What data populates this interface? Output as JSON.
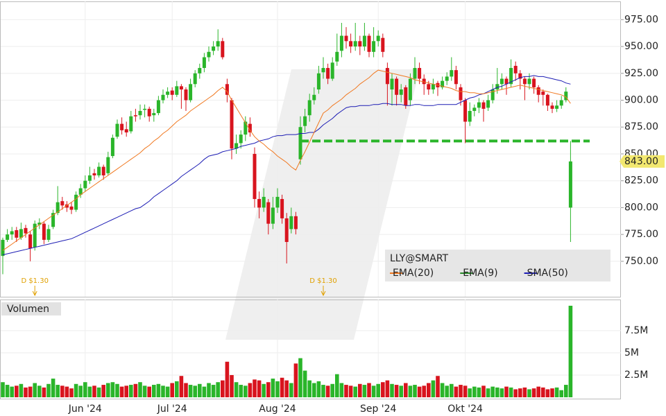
{
  "chart_data": {
    "type": "candlestick",
    "symbol": "LLY@SMART",
    "volume_title": "Volumen",
    "legend": [
      "EMA(20)",
      "EMA(9)",
      "SMA(50)"
    ],
    "legend_colors": [
      "#f07820",
      "#2a8a2a",
      "#1c1cb4"
    ],
    "colors": {
      "up": "#2ab52a",
      "down": "#d8141e"
    },
    "ylim": [
      717,
      992
    ],
    "yticks": [
      {
        "value": 750,
        "label": "750.00"
      },
      {
        "value": 775,
        "label": "775.00"
      },
      {
        "value": 800,
        "label": "800.00"
      },
      {
        "value": 825,
        "label": "825.00"
      },
      {
        "value": 850,
        "label": "850.00"
      },
      {
        "value": 875,
        "label": "875.00"
      },
      {
        "value": 900,
        "label": "900.00"
      },
      {
        "value": 925,
        "label": "925.00"
      },
      {
        "value": 950,
        "label": "950.00"
      },
      {
        "value": 975,
        "label": "975.00"
      }
    ],
    "vlim": [
      0,
      11
    ],
    "vticks": [
      {
        "value": 2.5,
        "label": "2.5M"
      },
      {
        "value": 5,
        "label": "5M"
      },
      {
        "value": 7.5,
        "label": "7.5M"
      }
    ],
    "xticks": [
      {
        "value": 18,
        "label": "Jun '24"
      },
      {
        "value": 37,
        "label": "Jul '24"
      },
      {
        "value": 60,
        "label": "Aug '24"
      },
      {
        "value": 82,
        "label": "Sep '24"
      },
      {
        "value": 101,
        "label": "Okt '24"
      }
    ],
    "last_price_label": "843.00",
    "dividends": [
      {
        "index": 7,
        "label": "D $1.30"
      },
      {
        "index": 70,
        "label": "D $1.30"
      }
    ],
    "level_line": {
      "value": 862,
      "from": 65
    },
    "candles": [
      [
        755,
        772,
        738,
        770
      ],
      [
        770,
        780,
        768,
        775
      ],
      [
        775,
        782,
        770,
        778
      ],
      [
        779,
        782,
        768,
        772
      ],
      [
        772,
        786,
        770,
        780
      ],
      [
        781,
        784,
        772,
        776
      ],
      [
        775,
        778,
        750,
        762
      ],
      [
        763,
        788,
        760,
        785
      ],
      [
        784,
        790,
        780,
        786
      ],
      [
        785,
        787,
        766,
        770
      ],
      [
        770,
        784,
        768,
        780
      ],
      [
        782,
        798,
        780,
        795
      ],
      [
        795,
        820,
        793,
        805
      ],
      [
        806,
        810,
        798,
        802
      ],
      [
        803,
        806,
        796,
        800
      ],
      [
        801,
        805,
        794,
        798
      ],
      [
        798,
        815,
        796,
        812
      ],
      [
        812,
        822,
        809,
        818
      ],
      [
        818,
        830,
        815,
        825
      ],
      [
        825,
        838,
        822,
        830
      ],
      [
        832,
        836,
        826,
        830
      ],
      [
        830,
        842,
        828,
        838
      ],
      [
        838,
        840,
        826,
        830
      ],
      [
        832,
        852,
        830,
        847
      ],
      [
        848,
        868,
        846,
        865
      ],
      [
        866,
        882,
        864,
        878
      ],
      [
        878,
        884,
        868,
        872
      ],
      [
        873,
        880,
        866,
        870
      ],
      [
        871,
        890,
        869,
        885
      ],
      [
        886,
        892,
        880,
        885
      ],
      [
        886,
        896,
        882,
        890
      ],
      [
        891,
        896,
        884,
        892
      ],
      [
        892,
        894,
        880,
        885
      ],
      [
        886,
        892,
        880,
        888
      ],
      [
        888,
        904,
        886,
        900
      ],
      [
        900,
        910,
        897,
        905
      ],
      [
        905,
        912,
        902,
        908
      ],
      [
        909,
        912,
        900,
        905
      ],
      [
        905,
        918,
        903,
        913
      ],
      [
        913,
        915,
        892,
        910
      ],
      [
        910,
        912,
        890,
        900
      ],
      [
        900,
        920,
        898,
        915
      ],
      [
        915,
        928,
        912,
        925
      ],
      [
        925,
        934,
        920,
        930
      ],
      [
        930,
        944,
        926,
        940
      ],
      [
        940,
        950,
        936,
        945
      ],
      [
        946,
        955,
        942,
        950
      ],
      [
        950,
        966,
        946,
        955
      ],
      [
        955,
        958,
        938,
        940
      ],
      [
        915,
        920,
        898,
        905
      ],
      [
        900,
        902,
        845,
        855
      ],
      [
        855,
        868,
        850,
        860
      ],
      [
        860,
        872,
        855,
        868
      ],
      [
        868,
        885,
        862,
        880
      ],
      [
        878,
        884,
        866,
        870
      ],
      [
        850,
        856,
        800,
        808
      ],
      [
        808,
        815,
        790,
        800
      ],
      [
        800,
        818,
        796,
        810
      ],
      [
        805,
        808,
        775,
        785
      ],
      [
        785,
        810,
        780,
        800
      ],
      [
        800,
        818,
        795,
        810
      ],
      [
        808,
        812,
        785,
        790
      ],
      [
        790,
        795,
        748,
        768
      ],
      [
        780,
        800,
        776,
        792
      ],
      [
        792,
        796,
        775,
        780
      ],
      [
        845,
        885,
        840,
        875
      ],
      [
        876,
        892,
        870,
        885
      ],
      [
        886,
        906,
        880,
        900
      ],
      [
        900,
        912,
        896,
        905
      ],
      [
        910,
        932,
        906,
        925
      ],
      [
        926,
        940,
        920,
        930
      ],
      [
        930,
        934,
        915,
        920
      ],
      [
        920,
        940,
        918,
        935
      ],
      [
        936,
        962,
        932,
        945
      ],
      [
        946,
        972,
        940,
        960
      ],
      [
        960,
        968,
        948,
        955
      ],
      [
        955,
        962,
        944,
        950
      ],
      [
        950,
        972,
        946,
        955
      ],
      [
        955,
        960,
        942,
        950
      ],
      [
        950,
        972,
        946,
        960
      ],
      [
        960,
        962,
        940,
        945
      ],
      [
        945,
        968,
        940,
        955
      ],
      [
        955,
        965,
        950,
        960
      ],
      [
        958,
        962,
        940,
        945
      ],
      [
        930,
        935,
        895,
        915
      ],
      [
        910,
        925,
        895,
        920
      ],
      [
        920,
        922,
        895,
        905
      ],
      [
        905,
        915,
        898,
        910
      ],
      [
        912,
        914,
        892,
        895
      ],
      [
        900,
        925,
        895,
        920
      ],
      [
        920,
        940,
        915,
        930
      ],
      [
        930,
        935,
        915,
        920
      ],
      [
        920,
        924,
        905,
        915
      ],
      [
        915,
        918,
        905,
        910
      ],
      [
        910,
        920,
        906,
        915
      ],
      [
        916,
        918,
        904,
        912
      ],
      [
        912,
        922,
        910,
        918
      ],
      [
        918,
        926,
        914,
        922
      ],
      [
        922,
        940,
        918,
        928
      ],
      [
        928,
        932,
        910,
        915
      ],
      [
        912,
        915,
        895,
        900
      ],
      [
        900,
        902,
        860,
        880
      ],
      [
        880,
        898,
        876,
        890
      ],
      [
        890,
        896,
        885,
        893
      ],
      [
        893,
        902,
        888,
        898
      ],
      [
        898,
        900,
        880,
        892
      ],
      [
        893,
        905,
        890,
        900
      ],
      [
        900,
        915,
        897,
        910
      ],
      [
        910,
        930,
        906,
        915
      ],
      [
        915,
        925,
        910,
        920
      ],
      [
        920,
        922,
        905,
        915
      ],
      [
        915,
        938,
        912,
        930
      ],
      [
        932,
        936,
        918,
        925
      ],
      [
        925,
        928,
        910,
        920
      ],
      [
        920,
        922,
        900,
        915
      ],
      [
        915,
        925,
        910,
        920
      ],
      [
        920,
        922,
        906,
        912
      ],
      [
        912,
        914,
        898,
        905
      ],
      [
        908,
        910,
        895,
        905
      ],
      [
        905,
        906,
        890,
        895
      ],
      [
        895,
        898,
        888,
        892
      ],
      [
        892,
        900,
        889,
        895
      ],
      [
        895,
        904,
        892,
        900
      ],
      [
        900,
        912,
        898,
        908
      ],
      [
        800,
        862,
        768,
        843
      ]
    ],
    "volume": [
      1.7,
      1.4,
      1.2,
      1.3,
      1.5,
      1.1,
      1.2,
      1.6,
      1.3,
      1.1,
      1.5,
      2.1,
      1.4,
      1.3,
      1.2,
      1.0,
      1.5,
      1.3,
      1.7,
      1.2,
      1.3,
      1.1,
      1.4,
      1.6,
      1.7,
      1.5,
      1.2,
      1.3,
      1.4,
      1.5,
      1.7,
      1.3,
      1.2,
      1.4,
      1.5,
      1.3,
      1.2,
      1.6,
      1.8,
      2.4,
      1.6,
      1.4,
      1.3,
      1.5,
      1.2,
      1.6,
      1.4,
      1.7,
      1.9,
      4.0,
      2.5,
      1.7,
      1.4,
      1.3,
      1.6,
      2.0,
      1.9,
      1.5,
      1.7,
      2.1,
      1.8,
      2.2,
      1.9,
      1.6,
      3.8,
      4.4,
      3.0,
      1.9,
      1.6,
      1.8,
      1.4,
      1.3,
      1.5,
      2.6,
      1.6,
      1.4,
      1.3,
      1.2,
      1.5,
      1.4,
      1.6,
      1.3,
      1.5,
      1.7,
      1.9,
      1.5,
      1.4,
      1.3,
      1.6,
      1.3,
      1.4,
      1.2,
      1.3,
      1.6,
      1.9,
      2.4,
      1.6,
      1.3,
      1.5,
      1.2,
      1.4,
      1.3,
      1.0,
      1.2,
      1.1,
      1.3,
      1.0,
      1.2,
      1.1,
      1.0,
      1.2,
      1.1,
      0.9,
      1.0,
      1.1,
      0.9,
      1.0,
      1.2,
      1.1,
      0.9,
      1.0,
      1.1,
      0.8,
      1.4,
      10.3
    ],
    "ema20": [
      760,
      763,
      766,
      769,
      772,
      775,
      778,
      781,
      784,
      787,
      790,
      793,
      796,
      799,
      802,
      805,
      808,
      812,
      815,
      818,
      821,
      824,
      827,
      830,
      833,
      836,
      839,
      842,
      845,
      848,
      851,
      855,
      858,
      862,
      865,
      869,
      872,
      876,
      880,
      883,
      886,
      890,
      893,
      896,
      899,
      902,
      905,
      909,
      912,
      908,
      900,
      893,
      886,
      879,
      872,
      866,
      862,
      859,
      855,
      852,
      848,
      845,
      842,
      838,
      835,
      844,
      852,
      861,
      870,
      879,
      888,
      891,
      895,
      898,
      901,
      905,
      908,
      911,
      915,
      918,
      921,
      925,
      928,
      927,
      926,
      925,
      924,
      923,
      922,
      921,
      919,
      918,
      917,
      916,
      915,
      914,
      913,
      912,
      911,
      909,
      908,
      908,
      907,
      907,
      906,
      906,
      907,
      908,
      909,
      910,
      911,
      912,
      913,
      914,
      913,
      912,
      911,
      910,
      909,
      908,
      907,
      906,
      905,
      903,
      897
    ],
    "sma50": [
      756,
      757,
      758,
      759,
      760,
      761,
      762,
      763,
      764,
      765,
      766,
      767,
      768,
      769,
      770,
      771,
      773,
      775,
      777,
      779,
      781,
      783,
      785,
      787,
      789,
      791,
      793,
      795,
      797,
      799,
      800,
      803,
      806,
      810,
      813,
      816,
      819,
      822,
      825,
      829,
      832,
      835,
      838,
      841,
      845,
      848,
      849,
      850,
      852,
      853,
      854,
      855,
      857,
      858,
      859,
      860,
      862,
      863,
      864,
      866,
      867,
      867,
      868,
      868,
      868,
      869,
      869,
      870,
      870,
      873,
      877,
      880,
      883,
      887,
      890,
      893,
      894,
      894,
      895,
      895,
      895,
      896,
      896,
      897,
      897,
      896,
      896,
      896,
      895,
      895,
      896,
      896,
      895,
      895,
      895,
      896,
      896,
      896,
      896,
      896,
      898,
      900,
      902,
      903,
      905,
      906,
      908,
      910,
      912,
      913,
      915,
      917,
      919,
      921,
      922,
      922,
      923,
      922,
      922,
      921,
      920,
      919,
      918,
      916,
      915
    ]
  }
}
